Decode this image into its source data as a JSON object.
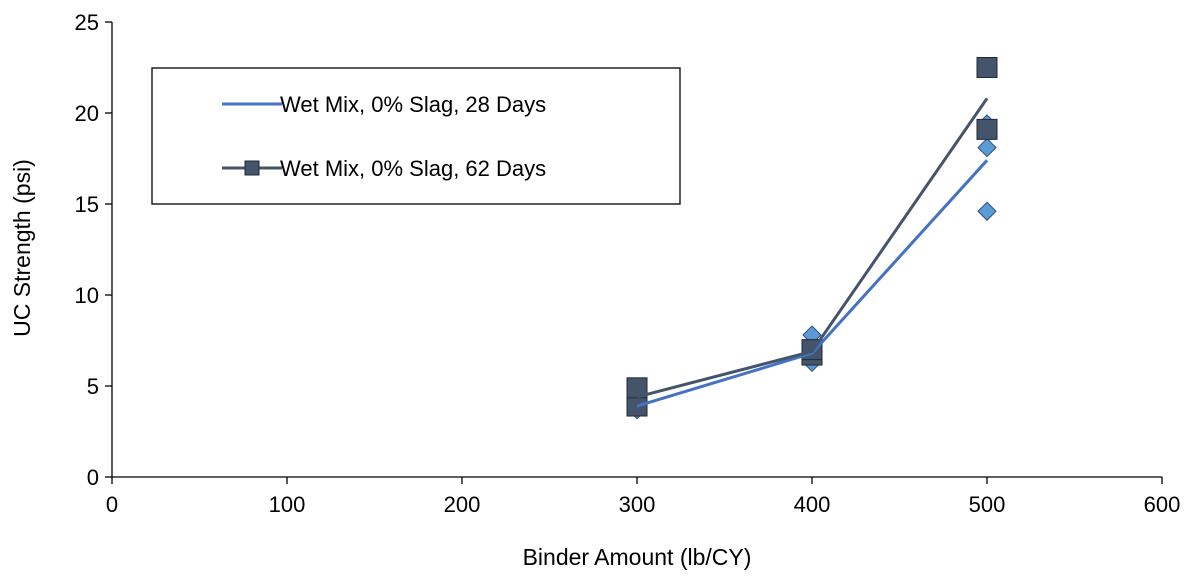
{
  "chart_data": {
    "type": "scatter",
    "title": "",
    "xlabel": "Binder Amount (lb/CY)",
    "ylabel": "UC Strength (psi)",
    "xlim": [
      0,
      600
    ],
    "ylim": [
      0,
      25
    ],
    "xticks": [
      0,
      100,
      200,
      300,
      400,
      500,
      600
    ],
    "yticks": [
      0,
      5,
      10,
      15,
      20,
      25
    ],
    "grid": false,
    "legend_position": "top-left",
    "series": [
      {
        "name": "Wet Mix, 0% Slag, 28 Days",
        "color": "#4472c4",
        "marker": "diamond",
        "marker_color": "#5b9bd5",
        "points": [
          [
            300,
            3.7
          ],
          [
            300,
            4.1
          ],
          [
            400,
            6.3
          ],
          [
            400,
            7.8
          ],
          [
            500,
            14.6
          ],
          [
            500,
            18.1
          ],
          [
            500,
            19.4
          ]
        ],
        "trend": [
          [
            300,
            3.9
          ],
          [
            400,
            6.8
          ],
          [
            500,
            17.4
          ]
        ]
      },
      {
        "name": "Wet Mix, 0% Slag, 62 Days",
        "color": "#44546a",
        "marker": "square",
        "marker_color": "#44546a",
        "points": [
          [
            300,
            3.9
          ],
          [
            300,
            4.9
          ],
          [
            400,
            6.7
          ],
          [
            400,
            7.0
          ],
          [
            500,
            19.1
          ],
          [
            500,
            22.5
          ]
        ],
        "trend": [
          [
            300,
            4.4
          ],
          [
            400,
            6.9
          ],
          [
            500,
            20.8
          ]
        ]
      }
    ]
  }
}
